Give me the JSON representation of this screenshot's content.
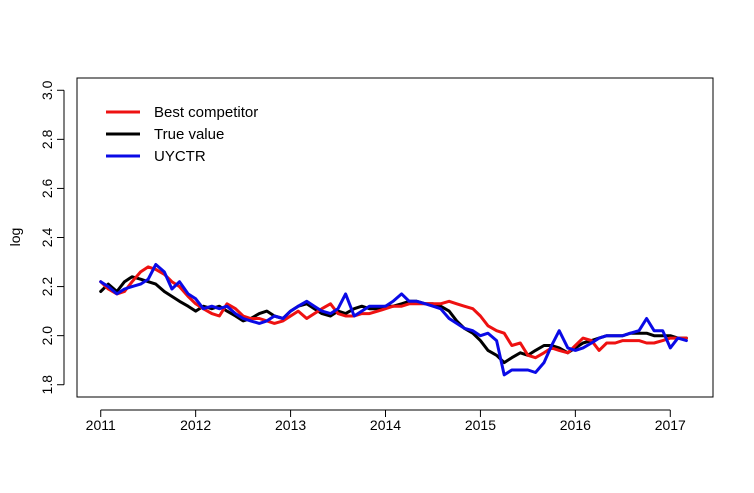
{
  "chart_data": {
    "type": "line",
    "title": "",
    "xlabel": "",
    "ylabel": "log",
    "xlim": [
      2010.75,
      2017.45
    ],
    "ylim": [
      1.75,
      3.05
    ],
    "x_ticks": [
      2011,
      2012,
      2013,
      2014,
      2015,
      2016,
      2017
    ],
    "x_tick_labels": [
      "2011",
      "2012",
      "2013",
      "2014",
      "2015",
      "2016",
      "2017"
    ],
    "y_ticks": [
      1.8,
      2.0,
      2.2,
      2.4,
      2.6,
      2.8,
      3.0
    ],
    "y_tick_labels": [
      "1.8",
      "2.0",
      "2.2",
      "2.4",
      "2.6",
      "2.8",
      "3.0"
    ],
    "grid": false,
    "legend_position": "top-left",
    "x": [
      2011.0,
      2011.08,
      2011.17,
      2011.25,
      2011.33,
      2011.42,
      2011.5,
      2011.58,
      2011.67,
      2011.75,
      2011.83,
      2011.92,
      2012.0,
      2012.08,
      2012.17,
      2012.25,
      2012.33,
      2012.42,
      2012.5,
      2012.58,
      2012.67,
      2012.75,
      2012.83,
      2012.92,
      2013.0,
      2013.08,
      2013.17,
      2013.25,
      2013.33,
      2013.42,
      2013.5,
      2013.58,
      2013.67,
      2013.75,
      2013.83,
      2013.92,
      2014.0,
      2014.08,
      2014.17,
      2014.25,
      2014.33,
      2014.42,
      2014.5,
      2014.58,
      2014.67,
      2014.75,
      2014.83,
      2014.92,
      2015.0,
      2015.08,
      2015.17,
      2015.25,
      2015.33,
      2015.42,
      2015.5,
      2015.58,
      2015.67,
      2015.75,
      2015.83,
      2015.92,
      2016.0,
      2016.08,
      2016.17,
      2016.25,
      2016.33,
      2016.42,
      2016.5,
      2016.58,
      2016.67,
      2016.75,
      2016.83,
      2016.92,
      2017.0,
      2017.08,
      2017.17
    ],
    "series": [
      {
        "name": "Best competitor",
        "color": "#ee1111",
        "values": [
          2.22,
          2.19,
          2.17,
          2.18,
          2.22,
          2.26,
          2.28,
          2.27,
          2.25,
          2.22,
          2.2,
          2.16,
          2.13,
          2.11,
          2.09,
          2.08,
          2.13,
          2.11,
          2.08,
          2.07,
          2.07,
          2.06,
          2.05,
          2.06,
          2.08,
          2.1,
          2.07,
          2.09,
          2.11,
          2.13,
          2.09,
          2.08,
          2.08,
          2.09,
          2.09,
          2.1,
          2.11,
          2.12,
          2.12,
          2.13,
          2.13,
          2.13,
          2.13,
          2.13,
          2.14,
          2.13,
          2.12,
          2.11,
          2.08,
          2.04,
          2.02,
          2.01,
          1.96,
          1.97,
          1.92,
          1.91,
          1.93,
          1.95,
          1.94,
          1.93,
          1.96,
          1.99,
          1.98,
          1.94,
          1.97,
          1.97,
          1.98,
          1.98,
          1.98,
          1.97,
          1.97,
          1.98,
          1.99,
          1.99,
          1.99
        ]
      },
      {
        "name": "True value",
        "color": "#000000",
        "values": [
          2.18,
          2.21,
          2.18,
          2.22,
          2.24,
          2.23,
          2.22,
          2.21,
          2.18,
          2.16,
          2.14,
          2.12,
          2.1,
          2.12,
          2.11,
          2.12,
          2.1,
          2.08,
          2.06,
          2.07,
          2.09,
          2.1,
          2.08,
          2.07,
          2.1,
          2.12,
          2.13,
          2.11,
          2.09,
          2.08,
          2.1,
          2.09,
          2.11,
          2.12,
          2.11,
          2.11,
          2.12,
          2.12,
          2.13,
          2.14,
          2.14,
          2.13,
          2.13,
          2.12,
          2.1,
          2.06,
          2.03,
          2.01,
          1.98,
          1.94,
          1.92,
          1.89,
          1.91,
          1.93,
          1.92,
          1.94,
          1.96,
          1.96,
          1.95,
          1.93,
          1.95,
          1.97,
          1.98,
          1.99,
          2.0,
          2.0,
          2.0,
          2.01,
          2.01,
          2.01,
          2.0,
          2.0,
          2.0,
          1.99,
          1.99
        ]
      },
      {
        "name": "UYCTR",
        "color": "#0a0ae6",
        "values": [
          2.22,
          2.2,
          2.17,
          2.19,
          2.2,
          2.21,
          2.23,
          2.29,
          2.26,
          2.19,
          2.22,
          2.17,
          2.15,
          2.11,
          2.12,
          2.11,
          2.12,
          2.09,
          2.07,
          2.06,
          2.05,
          2.06,
          2.08,
          2.07,
          2.1,
          2.12,
          2.14,
          2.12,
          2.1,
          2.09,
          2.11,
          2.17,
          2.08,
          2.1,
          2.12,
          2.12,
          2.12,
          2.14,
          2.17,
          2.14,
          2.14,
          2.13,
          2.12,
          2.11,
          2.07,
          2.05,
          2.03,
          2.02,
          2.0,
          2.01,
          1.98,
          1.84,
          1.86,
          1.86,
          1.86,
          1.85,
          1.89,
          1.96,
          2.02,
          1.95,
          1.94,
          1.95,
          1.97,
          1.99,
          2.0,
          2.0,
          2.0,
          2.01,
          2.02,
          2.07,
          2.02,
          2.02,
          1.95,
          1.99,
          1.98
        ]
      }
    ]
  }
}
